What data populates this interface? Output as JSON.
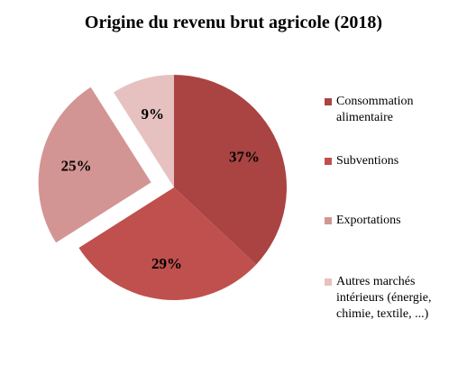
{
  "chart_data": {
    "type": "pie",
    "title": "Origine du revenu brut agricole (2018)",
    "categories": [
      "Consommation alimentaire",
      "Subventions",
      "Exportations",
      "Autres marchés intérieurs (énergie, chimie, textile, ...)"
    ],
    "values": [
      37,
      29,
      25,
      9
    ],
    "labels": [
      "37%",
      "29%",
      "25%",
      "9%"
    ],
    "exploded": [
      false,
      false,
      true,
      false
    ],
    "colors": [
      "#a94442",
      "#c0504d",
      "#d39593",
      "#e6c1c0"
    ],
    "legend_position": "right",
    "start_angle": "12 o'clock",
    "direction": "clockwise"
  }
}
